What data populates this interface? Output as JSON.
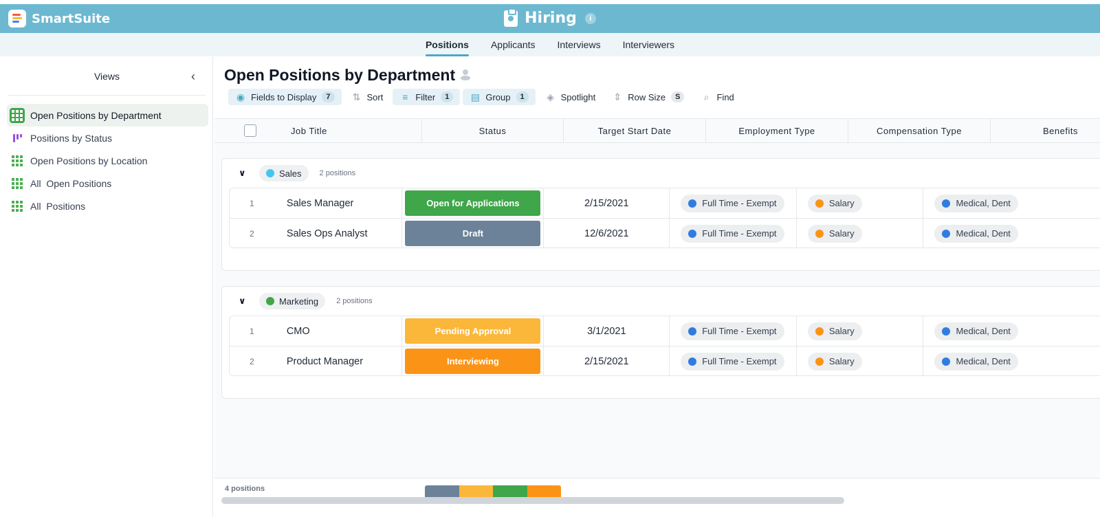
{
  "app": {
    "brand": "SmartSuite",
    "title": "Hiring",
    "info_icon": "i"
  },
  "tabs": [
    {
      "label": "Positions",
      "active": true
    },
    {
      "label": "Applicants"
    },
    {
      "label": "Interviews"
    },
    {
      "label": "Interviewers"
    }
  ],
  "sidebar": {
    "header": "Views",
    "collapse_icon": "‹",
    "items": [
      {
        "label": "Open Positions by Department",
        "icon": "grid-view-icon",
        "active": true
      },
      {
        "label": "Positions by Status",
        "icon": "kanban-view-icon"
      },
      {
        "label": "Open Positions by Location",
        "icon": "grid-view-icon"
      },
      {
        "label": "All  Open Positions",
        "icon": "grid-view-icon"
      },
      {
        "label": "All  Positions",
        "icon": "grid-view-icon"
      }
    ]
  },
  "view": {
    "title": "Open Positions by Department"
  },
  "toolbar": {
    "fields": {
      "label": "Fields to Display",
      "count": "7",
      "icon": "◉"
    },
    "sort": {
      "label": "Sort",
      "icon": "⇅"
    },
    "filter": {
      "label": "Filter",
      "count": "1",
      "icon": "≡"
    },
    "group": {
      "label": "Group",
      "count": "1",
      "icon": "▤"
    },
    "spotlight": {
      "label": "Spotlight",
      "icon": "◈"
    },
    "row_size": {
      "label": "Row Size",
      "value": "S",
      "icon": "⇕"
    },
    "find": {
      "label": "Find",
      "icon": "⌕"
    }
  },
  "columns": [
    "Job Title",
    "Status",
    "Target Start Date",
    "Employment Type",
    "Compensation Type",
    "Benefits"
  ],
  "groups": [
    {
      "name": "Sales",
      "color": "#45c4f2",
      "count_label": "2 positions",
      "chevron": "∨",
      "rows": [
        {
          "num": "1",
          "title": "Sales Manager",
          "status": "Open for Applications",
          "status_color": "#3fa64a",
          "date": "2/15/2021",
          "employment": "Full Time - Exempt",
          "compensation": "Salary",
          "benefits": "Medical, Dent"
        },
        {
          "num": "2",
          "title": "Sales Ops Analyst",
          "status": "Draft",
          "status_color": "#6b8299",
          "date": "12/6/2021",
          "employment": "Full Time - Exempt",
          "compensation": "Salary",
          "benefits": "Medical, Dent"
        }
      ]
    },
    {
      "name": "Marketing",
      "color": "#3fa64a",
      "count_label": "2 positions",
      "chevron": "∨",
      "rows": [
        {
          "num": "1",
          "title": "CMO",
          "status": "Pending Approval",
          "status_color": "#fbb73a",
          "date": "3/1/2021",
          "employment": "Full Time - Exempt",
          "compensation": "Salary",
          "benefits": "Medical, Dent"
        },
        {
          "num": "2",
          "title": "Product Manager",
          "status": "Interviewing",
          "status_color": "#fb9416",
          "date": "2/15/2021",
          "employment": "Full Time - Exempt",
          "compensation": "Salary",
          "benefits": "Medical, Dent"
        }
      ]
    }
  ],
  "colors": {
    "employment_dot": "#2f7de1",
    "compensation_dot": "#fb9416",
    "benefits_dot": "#2f7de1",
    "header": "#6cb8d1"
  },
  "footer": {
    "count_label": "4 positions",
    "status_summary": [
      {
        "status": "Draft",
        "color": "#6b8299",
        "share": 0.25
      },
      {
        "status": "Pending Approval",
        "color": "#fbb73a",
        "share": 0.25
      },
      {
        "status": "Open for Applications",
        "color": "#3fa64a",
        "share": 0.25
      },
      {
        "status": "Interviewing",
        "color": "#fb9416",
        "share": 0.25
      }
    ]
  }
}
